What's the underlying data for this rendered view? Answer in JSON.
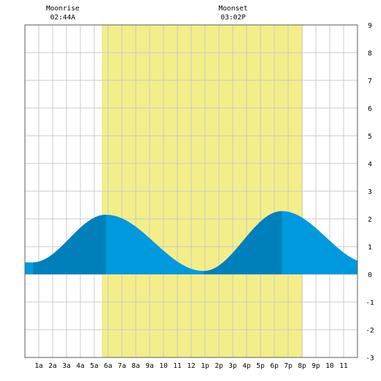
{
  "annotations": {
    "moonrise": {
      "label": "Moonrise",
      "time": "02:44A",
      "hour": 2.73
    },
    "moonset": {
      "label": "Moonset",
      "time": "03:02P",
      "hour": 15.03
    }
  },
  "chart_data": {
    "type": "area",
    "title": "",
    "xlabel": "",
    "ylabel": "",
    "xlim": [
      0,
      24
    ],
    "ylim": [
      -3,
      9
    ],
    "grid": true,
    "x_ticks": [
      {
        "x": 1,
        "label": "1a"
      },
      {
        "x": 2,
        "label": "2a"
      },
      {
        "x": 3,
        "label": "3a"
      },
      {
        "x": 4,
        "label": "4a"
      },
      {
        "x": 5,
        "label": "5a"
      },
      {
        "x": 6,
        "label": "6a"
      },
      {
        "x": 7,
        "label": "7a"
      },
      {
        "x": 8,
        "label": "8a"
      },
      {
        "x": 9,
        "label": "9a"
      },
      {
        "x": 10,
        "label": "10"
      },
      {
        "x": 11,
        "label": "11"
      },
      {
        "x": 12,
        "label": "12"
      },
      {
        "x": 13,
        "label": "1p"
      },
      {
        "x": 14,
        "label": "2p"
      },
      {
        "x": 15,
        "label": "3p"
      },
      {
        "x": 16,
        "label": "4p"
      },
      {
        "x": 17,
        "label": "5p"
      },
      {
        "x": 18,
        "label": "6p"
      },
      {
        "x": 19,
        "label": "7p"
      },
      {
        "x": 20,
        "label": "8p"
      },
      {
        "x": 21,
        "label": "9p"
      },
      {
        "x": 22,
        "label": "10"
      },
      {
        "x": 23,
        "label": "11"
      }
    ],
    "y_ticks": [
      -3,
      -2,
      -1,
      0,
      1,
      2,
      3,
      4,
      5,
      6,
      7,
      8,
      9
    ],
    "daylight": {
      "start": 5.55,
      "end": 20.05,
      "color": "#f3ee8a"
    },
    "dark_bands": [
      {
        "start": 0.6,
        "end": 5.85
      },
      {
        "start": 12.9,
        "end": 18.55
      }
    ],
    "colors": {
      "tide": "#0099dd",
      "tide_dark": "#0080bb",
      "grid": "#c8c8c8"
    },
    "tides": [
      {
        "type": "low",
        "hour": 0.55,
        "height": 0.43
      },
      {
        "type": "high",
        "hour": 5.85,
        "height": 2.15
      },
      {
        "type": "low",
        "hour": 12.9,
        "height": 0.12
      },
      {
        "type": "high",
        "hour": 18.55,
        "height": 2.28
      },
      {
        "type": "low",
        "hour": 24.9,
        "height": 0.4
      }
    ]
  }
}
